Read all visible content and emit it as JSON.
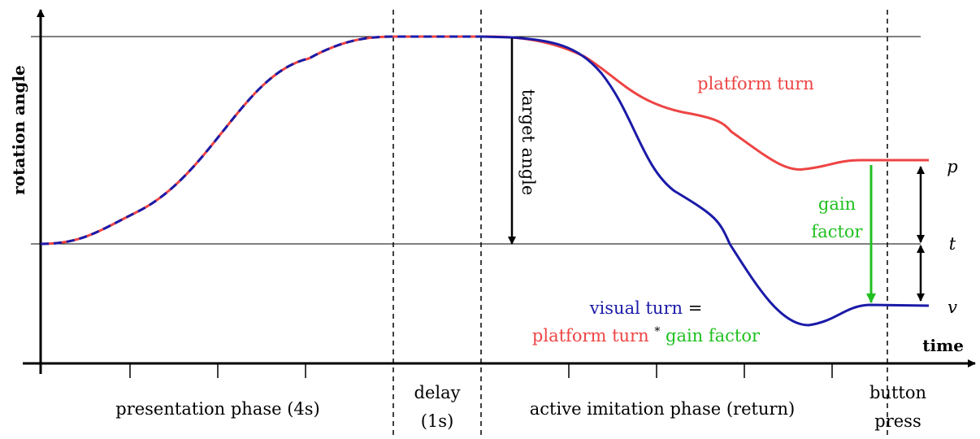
{
  "axes": {
    "y_label": "rotation angle",
    "x_label": "time"
  },
  "annotations": {
    "target_angle": "target angle",
    "platform_turn": "platform turn",
    "gain_factor": [
      "gain",
      "factor"
    ],
    "levels": [
      "p",
      "t",
      "v"
    ]
  },
  "formula": {
    "visual_turn": "visual turn",
    "equals": "=",
    "platform_turn": "platform turn",
    "times": "*",
    "gain_factor": "gain factor"
  },
  "phases": [
    [
      "presentation phase (4s)"
    ],
    [
      "delay",
      "(1s)"
    ],
    [
      "active imitation phase (return)"
    ],
    [
      "button",
      "press"
    ]
  ]
}
